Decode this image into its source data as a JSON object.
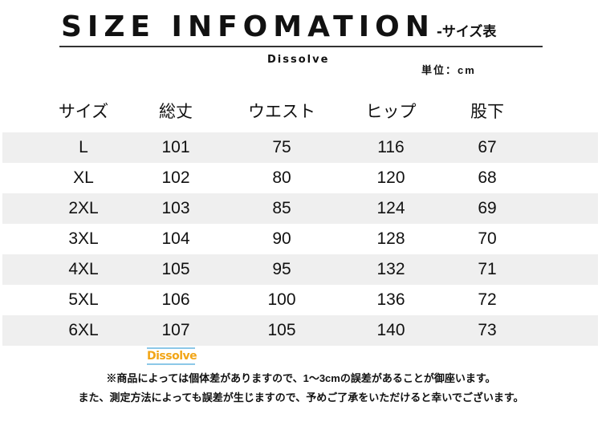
{
  "title": "SIZE INFOMATION",
  "title_suffix": "-サイズ表",
  "brand": "Dissolve",
  "unit": "単位：cm",
  "columns": [
    "サイズ",
    "総丈",
    "ウエスト",
    "ヒップ",
    "股下"
  ],
  "rows": [
    [
      "L",
      "101",
      "75",
      "116",
      "67"
    ],
    [
      "XL",
      "102",
      "80",
      "120",
      "68"
    ],
    [
      "2XL",
      "103",
      "85",
      "124",
      "69"
    ],
    [
      "3XL",
      "104",
      "90",
      "128",
      "70"
    ],
    [
      "4XL",
      "105",
      "95",
      "132",
      "71"
    ],
    [
      "5XL",
      "106",
      "100",
      "136",
      "72"
    ],
    [
      "6XL",
      "107",
      "105",
      "140",
      "73"
    ]
  ],
  "watermark": "Dissolve",
  "notes": [
    "※商品によっては個体差がありますので、1～3cmの誤差があることが御座います。",
    "また、測定方法によっても誤差が生じますので、予めご了承をいただけると幸いでございます。"
  ],
  "colors": {
    "stripe": "#efefef",
    "watermark_text": "#f2a516",
    "watermark_line": "#8cc8e8"
  }
}
